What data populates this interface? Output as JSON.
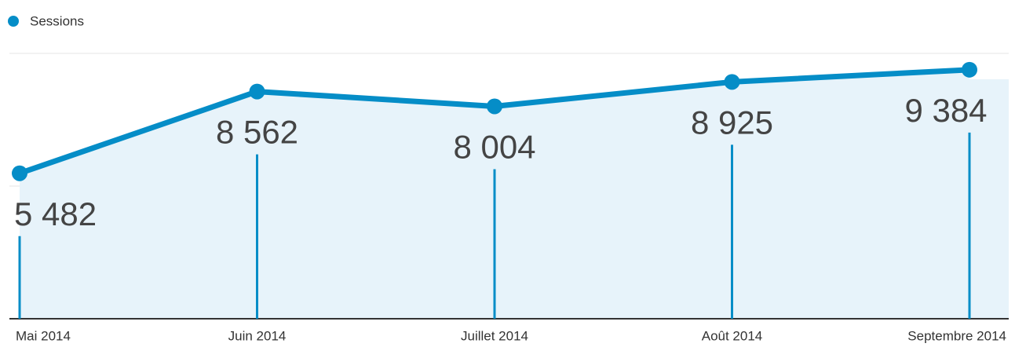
{
  "chart_data": {
    "type": "line",
    "categories": [
      "Mai 2014",
      "Juin 2014",
      "Juillet 2014",
      "Août 2014",
      "Septembre 2014"
    ],
    "series": [
      {
        "name": "Sessions",
        "color": "#058dc7",
        "values": [
          5482,
          8562,
          8004,
          8925,
          9384
        ],
        "value_labels": [
          "5 482",
          "8 562",
          "8 004",
          "8 925",
          "9 384"
        ]
      }
    ],
    "ylim": [
      0,
      10000
    ],
    "yticks": [
      0,
      5000,
      10000
    ],
    "grid": true
  }
}
